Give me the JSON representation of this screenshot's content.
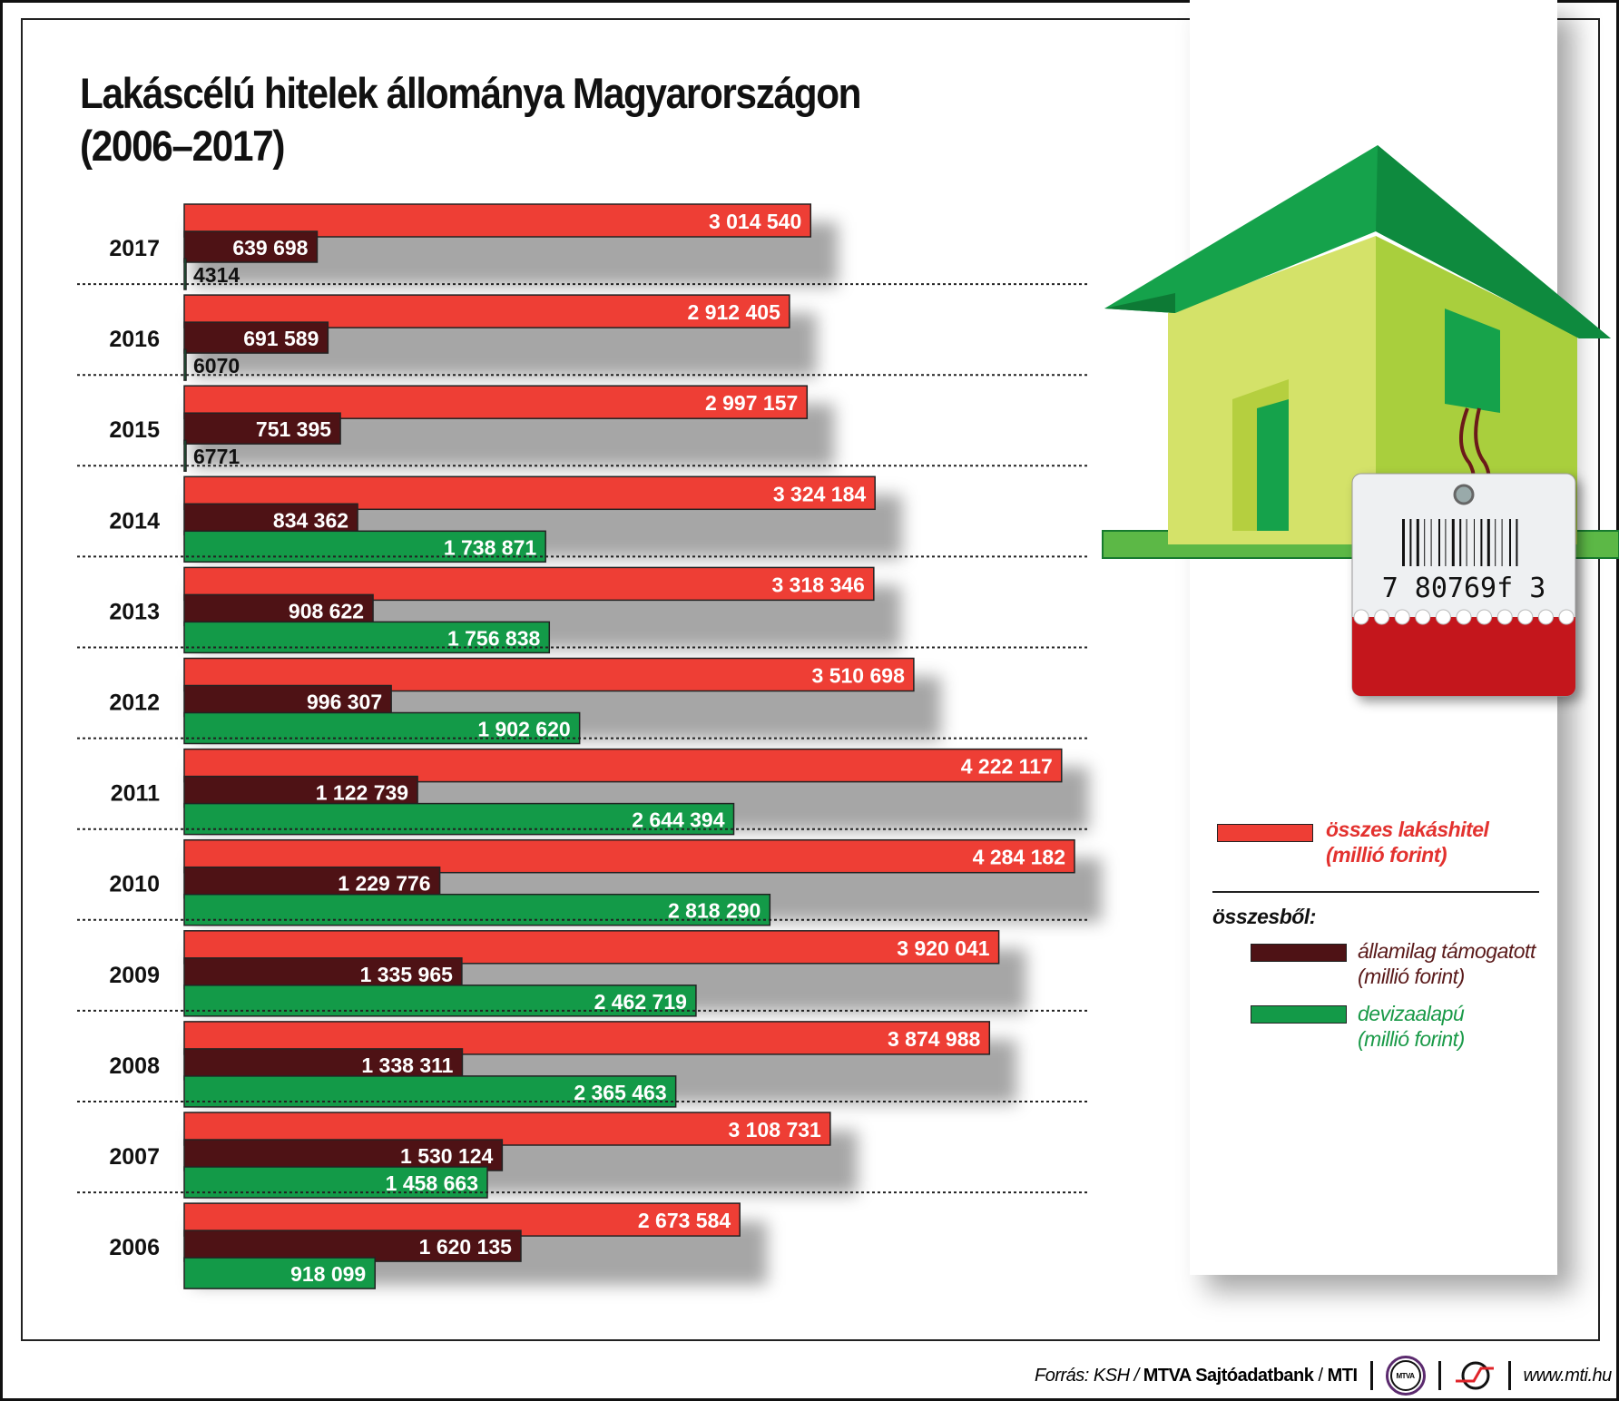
{
  "title_line1": "Lakáscélú hitelek állománya Magyarországon",
  "title_line2": "(2006–2017)",
  "chart_data": {
    "type": "bar",
    "orientation": "horizontal",
    "categories": [
      "2017",
      "2016",
      "2015",
      "2014",
      "2013",
      "2012",
      "2011",
      "2010",
      "2009",
      "2008",
      "2007",
      "2006"
    ],
    "series": [
      {
        "name": "összes lakáshitel (millió forint)",
        "color": "#ee3e35",
        "values": [
          3014540,
          2912405,
          2997157,
          3324184,
          3318346,
          3510698,
          4222117,
          4284182,
          3920041,
          3874988,
          3108731,
          2673584
        ],
        "labels": [
          "3 014 540",
          "2 912 405",
          "2 997 157",
          "3 324 184",
          "3 318 346",
          "3 510 698",
          "4 222 117",
          "4 284 182",
          "3 920 041",
          "3 874 988",
          "3 108 731",
          "2 673 584"
        ]
      },
      {
        "name": "államilag támogatott (millió forint)",
        "color": "#4e1215",
        "values": [
          639698,
          691589,
          751395,
          834362,
          908622,
          996307,
          1122739,
          1229776,
          1335965,
          1338311,
          1530124,
          1620135
        ],
        "labels": [
          "639 698",
          "691 589",
          "751 395",
          "834 362",
          "908 622",
          "996 307",
          "1 122 739",
          "1 229 776",
          "1 335 965",
          "1 338 311",
          "1 530 124",
          "1 620 135"
        ]
      },
      {
        "name": "devizaalapú (millió forint)",
        "color": "#139a48",
        "values": [
          4314,
          6070,
          6771,
          1738871,
          1756838,
          1902620,
          2644394,
          2818290,
          2462719,
          2365463,
          1458663,
          918099
        ],
        "labels": [
          "4314",
          "6070",
          "6771",
          "1 738 871",
          "1 756 838",
          "1 902 620",
          "2 644 394",
          "2 818 290",
          "2 462 719",
          "2 365 463",
          "1 458 663",
          "918 099"
        ]
      }
    ],
    "grid": false,
    "legend_position": "right"
  },
  "legend": {
    "total_line1": "összes lakáshitel",
    "total_line2": "(millió forint)",
    "of_which": "összesből:",
    "state_line1": "államilag támogatott",
    "state_line2": "(millió forint)",
    "fx_line1": "devizaalapú",
    "fx_line2": "(millió forint)"
  },
  "barcode": "7  80769f  3",
  "footer": {
    "source_prefix": "Forrás: KSH / ",
    "source_bold": "MTVA Sajtóadatbank",
    "source_sep": " / ",
    "mti": "MTI",
    "mtva_logo": "MTVA",
    "url": "www.mti.hu"
  }
}
